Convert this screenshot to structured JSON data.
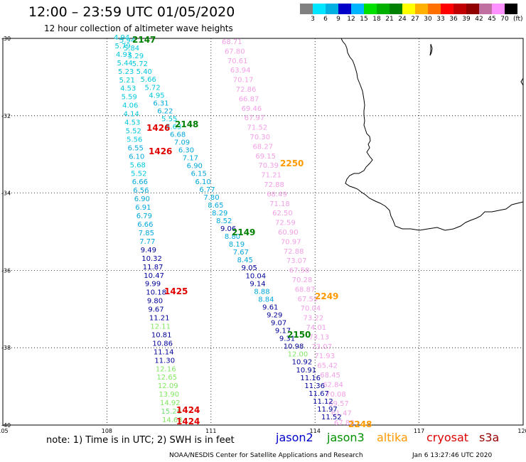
{
  "title": "12:00 – 23:59 UTC 01/05/2020",
  "subtitle": "12 hour collection of altimeter wave heights",
  "colorbar": {
    "unit": "(ft)",
    "labels": [
      "3",
      "6",
      "9",
      "12",
      "15",
      "18",
      "21",
      "24",
      "27",
      "30",
      "33",
      "36",
      "39",
      "42",
      "45",
      "70"
    ],
    "colors": [
      "#808080",
      "#00e5ff",
      "#00b0e0",
      "#0000c8",
      "#00b4ff",
      "#00e000",
      "#00b000",
      "#008000",
      "#ffff00",
      "#ffb000",
      "#ff7000",
      "#ff0000",
      "#c00000",
      "#900000",
      "#c070a0",
      "#ff90ff",
      "#000000"
    ]
  },
  "map": {
    "lon_range": [
      105,
      120
    ],
    "lat_range": [
      -40,
      -30
    ],
    "x_tick_labels": [
      "105",
      "108",
      "111",
      "114",
      "117",
      "120"
    ],
    "y_tick_labels": [
      "-30",
      "-32",
      "-34",
      "-36",
      "-38",
      "-40"
    ],
    "grid": "dotted"
  },
  "tracks": [
    {
      "satellite": "s3a",
      "color_key": "pink",
      "values": [
        "68.71",
        "67.80",
        "70.61",
        "63.94",
        "70.17",
        "72.86",
        "66.87",
        "69.46",
        "67.97",
        "71.52",
        "70.30",
        "68.27",
        "69.15",
        "70.39",
        "71.21",
        "72.88",
        "68.49",
        "71.18",
        "62.50",
        "72.59",
        "60.90",
        "70.97",
        "72.88",
        "73.07",
        "67.58",
        "70.28",
        "68.87",
        "67.59",
        "70.04",
        "73.22",
        "74.01",
        "73.13",
        "73.07",
        "71.93",
        "65.42",
        "68.45",
        "62.84",
        "70.08",
        "69.57",
        "61.47",
        "67.88"
      ]
    },
    {
      "satellite": "altika",
      "color_key": "teal",
      "values": [
        "4.94",
        "5.79",
        "4.93",
        "5.44",
        "5.23",
        "5.21",
        "4.53",
        "5.59",
        "4.06",
        "4.14",
        "4.53",
        "5.52",
        "5.56",
        "6.55",
        "6.10",
        "5.68",
        "5.52",
        "6.66",
        "6.56",
        "6.90",
        "6.91",
        "6.79",
        "6.66",
        "7.85",
        "7.77",
        "9.49",
        "10.32",
        "11.87",
        "10.47",
        "9.99",
        "10.18",
        "9.80",
        "9.67",
        "11.21",
        "12.11",
        "10.81",
        "10.86",
        "11.14",
        "11.30",
        "12.16",
        "12.65",
        "12.09",
        "13.90",
        "14.92",
        "15.26",
        "14.68"
      ]
    },
    {
      "satellite": "jason3",
      "color_key": "teal",
      "values": [
        "5.94",
        "5.84",
        "5.29",
        "5.72",
        "5.40",
        "5.66",
        "5.72",
        "4.95",
        "6.31",
        "6.22",
        "5.55",
        "5.63",
        "6.68",
        "7.09",
        "6.30",
        "7.17",
        "6.90",
        "6.15",
        "6.10",
        "6.77",
        "7.80",
        "8.65",
        "8.29",
        "8.52",
        "9.06",
        "8.80",
        "8.19",
        "7.67",
        "8.45",
        "9.05",
        "10.04",
        "9.14",
        "8.88",
        "8.84",
        "9.61",
        "9.29",
        "9.07",
        "9.17",
        "9.31",
        "10.98",
        "12.00",
        "10.92",
        "10.91",
        "11.16",
        "11.36",
        "11.67",
        "11.12",
        "11.97",
        "11.52"
      ]
    }
  ],
  "time_labels": [
    {
      "text": "2147",
      "color": "#008000"
    },
    {
      "text": "1426",
      "color": "#e00000"
    },
    {
      "text": "2148",
      "color": "#008000"
    },
    {
      "text": "1426",
      "color": "#e00000"
    },
    {
      "text": "2250",
      "color": "#ff9900"
    },
    {
      "text": "2149",
      "color": "#008000"
    },
    {
      "text": "1425",
      "color": "#e00000"
    },
    {
      "text": "2249",
      "color": "#ff9900"
    },
    {
      "text": "2150",
      "color": "#008000"
    },
    {
      "text": "1424",
      "color": "#e00000"
    },
    {
      "text": "1424",
      "color": "#e00000"
    },
    {
      "text": "2248",
      "color": "#ff9900"
    }
  ],
  "note": "note:  1) Time is in UTC;  2) SWH is in feet",
  "legend": [
    {
      "label": "jason2",
      "color": "#0000cc"
    },
    {
      "label": "jason3",
      "color": "#009000"
    },
    {
      "label": "altika",
      "color": "#ff9900"
    },
    {
      "label": "cryosat",
      "color": "#dd0000"
    },
    {
      "label": "s3a",
      "color": "#990000"
    }
  ],
  "credit": "NOAA/NESDIS Center for Satellite Applications and Research",
  "timestamp": "Jan  6 13:27:46 UTC 2020"
}
